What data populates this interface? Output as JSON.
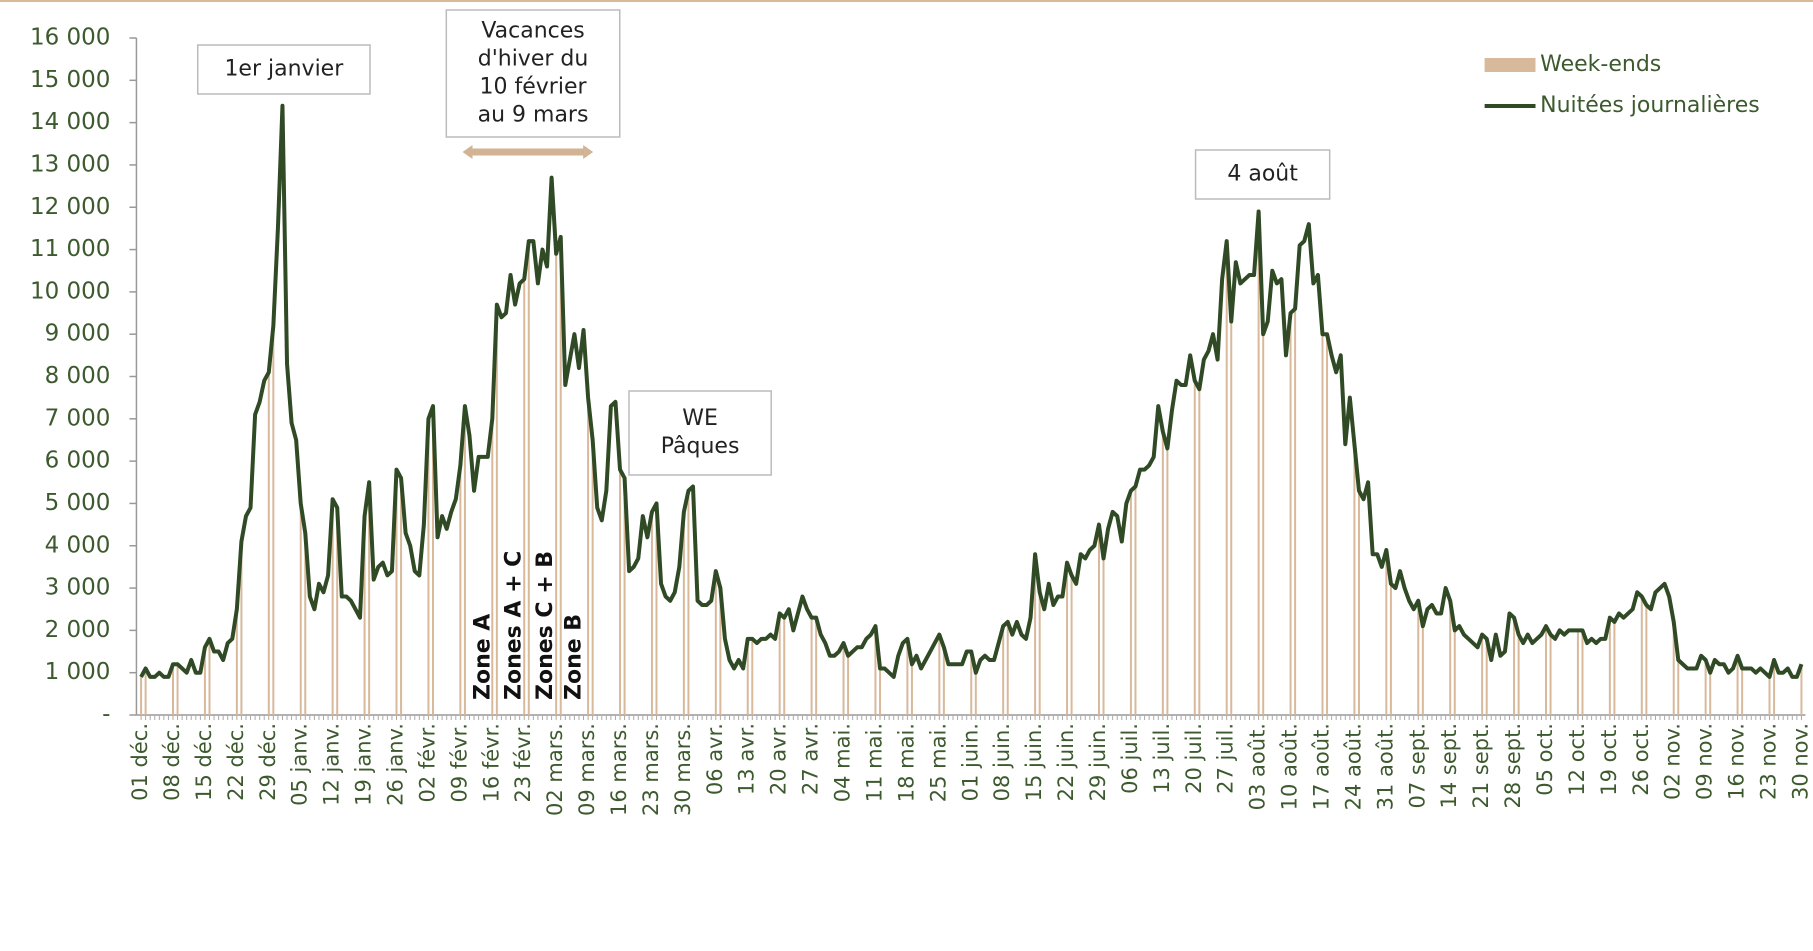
{
  "chart_data": {
    "type": "line",
    "ylim": [
      0,
      16000
    ],
    "yticks": [
      {
        "value": 0,
        "label": "-"
      },
      {
        "value": 1000,
        "label": "1 000"
      },
      {
        "value": 2000,
        "label": "2 000"
      },
      {
        "value": 3000,
        "label": "3 000"
      },
      {
        "value": 4000,
        "label": "4 000"
      },
      {
        "value": 5000,
        "label": "5 000"
      },
      {
        "value": 6000,
        "label": "6 000"
      },
      {
        "value": 7000,
        "label": "7 000"
      },
      {
        "value": 8000,
        "label": "8 000"
      },
      {
        "value": 9000,
        "label": "9 000"
      },
      {
        "value": 10000,
        "label": "10 000"
      },
      {
        "value": 11000,
        "label": "11 000"
      },
      {
        "value": 12000,
        "label": "12 000"
      },
      {
        "value": 13000,
        "label": "13 000"
      },
      {
        "value": 14000,
        "label": "14 000"
      },
      {
        "value": 15000,
        "label": "15 000"
      },
      {
        "value": 16000,
        "label": "16 000"
      }
    ],
    "legend": "top-right",
    "annotations": [
      {
        "lines": [
          "1er janvier"
        ]
      },
      {
        "lines": [
          "Vacances",
          "d'hiver du",
          "10 février",
          "au 9 mars"
        ]
      },
      {
        "lines": [
          "WE",
          "Pâques"
        ]
      },
      {
        "lines": [
          "4 août"
        ]
      }
    ],
    "zone_labels": [
      "Zone A",
      "Zones A + C",
      "Zones C + B",
      "Zone B"
    ],
    "categories": [
      "01 déc.",
      null,
      null,
      null,
      null,
      null,
      null,
      "08 déc.",
      null,
      null,
      null,
      null,
      null,
      null,
      "15 déc.",
      null,
      null,
      null,
      null,
      null,
      null,
      "22 déc.",
      null,
      null,
      null,
      null,
      null,
      null,
      "29 déc.",
      null,
      null,
      null,
      null,
      null,
      null,
      "05 janv.",
      null,
      null,
      null,
      null,
      null,
      null,
      "12 janv.",
      null,
      null,
      null,
      null,
      null,
      null,
      "19 janv.",
      null,
      null,
      null,
      null,
      null,
      null,
      "26 janv.",
      null,
      null,
      null,
      null,
      null,
      null,
      "02 févr.",
      null,
      null,
      null,
      null,
      null,
      null,
      "09 févr.",
      null,
      null,
      null,
      null,
      null,
      null,
      "16 févr.",
      null,
      null,
      null,
      null,
      null,
      null,
      "23 févr.",
      null,
      null,
      null,
      null,
      null,
      null,
      "02 mars.",
      null,
      null,
      null,
      null,
      null,
      null,
      "09 mars.",
      null,
      null,
      null,
      null,
      null,
      null,
      "16 mars.",
      null,
      null,
      null,
      null,
      null,
      null,
      "23 mars.",
      null,
      null,
      null,
      null,
      null,
      null,
      "30 mars.",
      null,
      null,
      null,
      null,
      null,
      null,
      "06 avr.",
      null,
      null,
      null,
      null,
      null,
      null,
      "13 avr.",
      null,
      null,
      null,
      null,
      null,
      null,
      "20 avr.",
      null,
      null,
      null,
      null,
      null,
      null,
      "27 avr.",
      null,
      null,
      null,
      null,
      null,
      null,
      "04 mai.",
      null,
      null,
      null,
      null,
      null,
      null,
      "11 mai.",
      null,
      null,
      null,
      null,
      null,
      null,
      "18 mai.",
      null,
      null,
      null,
      null,
      null,
      null,
      "25 mai.",
      null,
      null,
      null,
      null,
      null,
      null,
      "01 juin.",
      null,
      null,
      null,
      null,
      null,
      null,
      "08 juin.",
      null,
      null,
      null,
      null,
      null,
      null,
      "15 juin.",
      null,
      null,
      null,
      null,
      null,
      null,
      "22 juin.",
      null,
      null,
      null,
      null,
      null,
      null,
      "29 juin.",
      null,
      null,
      null,
      null,
      null,
      null,
      "06 juil.",
      null,
      null,
      null,
      null,
      null,
      null,
      "13 juil.",
      null,
      null,
      null,
      null,
      null,
      null,
      "20 juil.",
      null,
      null,
      null,
      null,
      null,
      null,
      "27 juil.",
      null,
      null,
      null,
      null,
      null,
      null,
      "03 août.",
      null,
      null,
      null,
      null,
      null,
      null,
      "10 août.",
      null,
      null,
      null,
      null,
      null,
      null,
      "17 août.",
      null,
      null,
      null,
      null,
      null,
      null,
      "24 août.",
      null,
      null,
      null,
      null,
      null,
      null,
      "31 août.",
      null,
      null,
      null,
      null,
      null,
      null,
      "07 sept.",
      null,
      null,
      null,
      null,
      null,
      null,
      "14 sept.",
      null,
      null,
      null,
      null,
      null,
      null,
      "21 sept.",
      null,
      null,
      null,
      null,
      null,
      null,
      "28 sept.",
      null,
      null,
      null,
      null,
      null,
      null,
      "05 oct.",
      null,
      null,
      null,
      null,
      null,
      null,
      "12 oct.",
      null,
      null,
      null,
      null,
      null,
      null,
      "19 oct.",
      null,
      null,
      null,
      null,
      null,
      null,
      "26 oct.",
      null,
      null,
      null,
      null,
      null,
      null,
      "02 nov.",
      null,
      null,
      null,
      null,
      null,
      null,
      "09 nov.",
      null,
      null,
      null,
      null,
      null,
      null,
      "16 nov.",
      null,
      null,
      null,
      null,
      null,
      null,
      "23 nov.",
      null,
      null,
      null,
      null,
      null,
      null,
      "30 nov."
    ],
    "series": [
      {
        "name": "Week-ends",
        "color": "#d8b99b",
        "type": "bar",
        "values": [
          900,
          1100,
          null,
          null,
          null,
          null,
          null,
          1200,
          1200,
          null,
          null,
          null,
          null,
          null,
          1600,
          1800,
          null,
          null,
          null,
          null,
          null,
          2500,
          4100,
          null,
          null,
          null,
          null,
          null,
          8100,
          9200,
          null,
          null,
          null,
          null,
          null,
          5000,
          4300,
          null,
          null,
          null,
          null,
          null,
          5100,
          4900,
          null,
          null,
          null,
          null,
          null,
          4700,
          5500,
          null,
          null,
          null,
          null,
          null,
          5800,
          5600,
          null,
          null,
          null,
          null,
          null,
          7000,
          7300,
          null,
          null,
          null,
          null,
          null,
          5900,
          7300,
          null,
          null,
          null,
          null,
          null,
          7000,
          9700,
          null,
          null,
          null,
          null,
          null,
          10300,
          11200,
          null,
          null,
          null,
          null,
          null,
          10900,
          11300,
          null,
          null,
          null,
          null,
          null,
          7500,
          6500,
          null,
          null,
          null,
          null,
          null,
          5800,
          5600,
          null,
          null,
          null,
          null,
          null,
          4800,
          5000,
          null,
          null,
          null,
          null,
          null,
          4800,
          5300,
          null,
          null,
          null,
          null,
          null,
          3400,
          3000,
          null,
          null,
          null,
          null,
          null,
          1800,
          1800,
          null,
          null,
          null,
          null,
          null,
          2400,
          2300,
          null,
          null,
          null,
          null,
          null,
          2300,
          2300,
          null,
          null,
          null,
          null,
          null,
          1700,
          1400,
          null,
          null,
          null,
          null,
          null,
          2100,
          1100,
          null,
          null,
          null,
          null,
          null,
          1800,
          1200,
          null,
          null,
          null,
          null,
          null,
          1900,
          1600,
          null,
          null,
          null,
          null,
          null,
          1500,
          1000,
          null,
          null,
          null,
          null,
          null,
          2100,
          2200,
          null,
          null,
          null,
          null,
          null,
          3800,
          2900,
          null,
          null,
          null,
          null,
          null,
          3600,
          3300,
          null,
          null,
          null,
          null,
          null,
          4500,
          3700,
          null,
          null,
          null,
          null,
          null,
          5300,
          5400,
          null,
          null,
          null,
          null,
          null,
          6700,
          6300,
          null,
          null,
          null,
          null,
          null,
          7900,
          7700,
          null,
          null,
          null,
          null,
          null,
          11200,
          9300,
          null,
          null,
          null,
          null,
          null,
          11900,
          9000,
          null,
          null,
          null,
          null,
          null,
          9500,
          9600,
          null,
          null,
          null,
          null,
          null,
          9000,
          9000,
          null,
          null,
          null,
          null,
          null,
          6400,
          5300,
          null,
          null,
          null,
          null,
          null,
          3900,
          3100,
          null,
          null,
          null,
          null,
          null,
          2700,
          2100,
          null,
          null,
          null,
          null,
          null,
          2700,
          2000,
          null,
          null,
          null,
          null,
          null,
          1900,
          1800,
          null,
          null,
          null,
          null,
          null,
          2300,
          1900,
          null,
          null,
          null,
          null,
          null,
          2100,
          1900,
          null,
          null,
          null,
          null,
          null,
          2000,
          2000,
          null,
          null,
          null,
          null,
          null,
          2300,
          2200,
          null,
          null,
          null,
          null,
          null,
          2800,
          2600,
          null,
          null,
          null,
          null,
          null,
          2200,
          1300,
          null,
          null,
          null,
          null,
          null,
          1300,
          1000,
          null,
          null,
          null,
          null,
          null,
          1400,
          1100,
          null,
          null,
          null,
          null,
          null,
          900,
          1300,
          null,
          null,
          null,
          null,
          null,
          1200
        ]
      },
      {
        "name": "Nuitées journalières",
        "color": "#2f4a25",
        "type": "line",
        "values": [
          900,
          1100,
          900,
          900,
          1000,
          900,
          900,
          1200,
          1200,
          1100,
          1000,
          1300,
          1000,
          1000,
          1600,
          1800,
          1500,
          1500,
          1300,
          1700,
          1800,
          2500,
          4100,
          4700,
          4900,
          7100,
          7400,
          7900,
          8100,
          9200,
          11500,
          14400,
          8300,
          6900,
          6500,
          5000,
          4300,
          2800,
          2500,
          3100,
          2900,
          3300,
          5100,
          4900,
          2800,
          2800,
          2700,
          2500,
          2300,
          4700,
          5500,
          3200,
          3500,
          3600,
          3300,
          3400,
          5800,
          5600,
          4300,
          4000,
          3400,
          3300,
          4500,
          7000,
          7300,
          4200,
          4700,
          4400,
          4800,
          5100,
          5900,
          7300,
          6600,
          5300,
          6100,
          6100,
          6100,
          7000,
          9700,
          9400,
          9500,
          10400,
          9700,
          10200,
          10300,
          11200,
          11200,
          10200,
          11000,
          10600,
          12700,
          10900,
          11300,
          7800,
          8400,
          9000,
          8200,
          9100,
          7500,
          6500,
          4900,
          4600,
          5300,
          7300,
          7400,
          5800,
          5600,
          3400,
          3500,
          3700,
          4700,
          4200,
          4800,
          5000,
          3100,
          2800,
          2700,
          2900,
          3500,
          4800,
          5300,
          5400,
          2700,
          2600,
          2600,
          2700,
          3400,
          3000,
          1800,
          1300,
          1100,
          1300,
          1100,
          1800,
          1800,
          1700,
          1800,
          1800,
          1900,
          1800,
          2400,
          2300,
          2500,
          2000,
          2400,
          2800,
          2500,
          2300,
          2300,
          1900,
          1700,
          1400,
          1400,
          1500,
          1700,
          1400,
          1500,
          1600,
          1600,
          1800,
          1900,
          2100,
          1100,
          1100,
          1000,
          900,
          1400,
          1700,
          1800,
          1200,
          1400,
          1100,
          1300,
          1500,
          1700,
          1900,
          1600,
          1200,
          1200,
          1200,
          1200,
          1500,
          1500,
          1000,
          1300,
          1400,
          1300,
          1300,
          1700,
          2100,
          2200,
          1900,
          2200,
          1900,
          1800,
          2300,
          3800,
          2900,
          2500,
          3100,
          2600,
          2800,
          2800,
          3600,
          3300,
          3100,
          3800,
          3700,
          3900,
          4000,
          4500,
          3700,
          4400,
          4800,
          4700,
          4100,
          5000,
          5300,
          5400,
          5800,
          5800,
          5900,
          6100,
          7300,
          6700,
          6300,
          7200,
          7900,
          7800,
          7800,
          8500,
          7900,
          7700,
          8400,
          8600,
          9000,
          8400,
          10300,
          11200,
          9300,
          10700,
          10200,
          10300,
          10400,
          10400,
          11900,
          9000,
          9300,
          10500,
          10200,
          10300,
          8500,
          9500,
          9600,
          11100,
          11200,
          11600,
          10200,
          10400,
          9000,
          9000,
          8500,
          8100,
          8500,
          6400,
          7500,
          6400,
          5300,
          5100,
          5500,
          3800,
          3800,
          3500,
          3900,
          3100,
          3000,
          3400,
          3000,
          2700,
          2500,
          2700,
          2100,
          2500,
          2600,
          2400,
          2400,
          3000,
          2700,
          2000,
          2100,
          1900,
          1800,
          1700,
          1600,
          1900,
          1800,
          1300,
          1900,
          1400,
          1500,
          2400,
          2300,
          1900,
          1700,
          1900,
          1700,
          1800,
          1900,
          2100,
          1900,
          1800,
          2000,
          1900,
          2000,
          2000,
          2000,
          2000,
          1700,
          1800,
          1700,
          1800,
          1800,
          2300,
          2200,
          2400,
          2300,
          2400,
          2500,
          2900,
          2800,
          2600,
          2500,
          2900,
          3000,
          3100,
          2800,
          2200,
          1300,
          1200,
          1100,
          1100,
          1100,
          1400,
          1300,
          1000,
          1300,
          1200,
          1200,
          1000,
          1100,
          1400,
          1100,
          1100,
          1100,
          1000,
          1100,
          1000,
          900,
          1300,
          1000,
          1000,
          1100,
          900,
          900,
          1200
        ]
      }
    ]
  }
}
